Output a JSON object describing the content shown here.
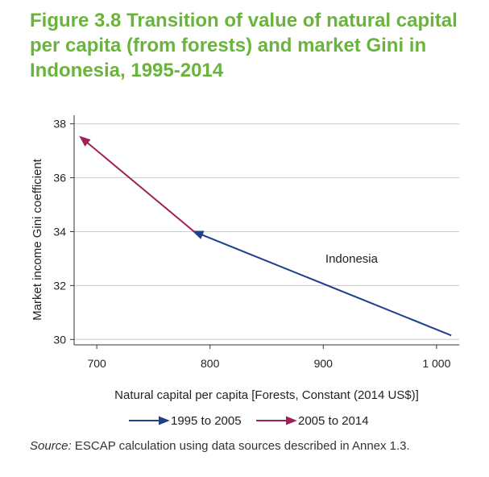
{
  "title_lines": [
    "Figure 3.8 Transition of value of natural capital",
    "per capita (from forests) and market Gini in",
    "Indonesia, 1995-2014"
  ],
  "colors": {
    "title": "#6ab43e",
    "series1": "#1f3f8f",
    "series2": "#a0205a",
    "grid": "#cccccc",
    "axis": "#333333"
  },
  "source": {
    "label": "Source:",
    "text": "ESCAP calculation using data sources described in Annex 1.3."
  },
  "chart_data": {
    "type": "line",
    "title": "",
    "xlabel": "Natural capital per capita [Forests, Constant (2014 US$)]",
    "ylabel": "Market income Gini coefficient",
    "xlim": [
      680,
      1020
    ],
    "ylim": [
      29.8,
      38.2
    ],
    "x_ticks": [
      700,
      800,
      900,
      1000
    ],
    "x_tick_labels": [
      "700",
      "800",
      "900",
      "1 000"
    ],
    "y_ticks": [
      30,
      32,
      34,
      36,
      38
    ],
    "y_tick_labels": [
      "30",
      "32",
      "34",
      "36",
      "38"
    ],
    "grid": "horizontal",
    "legend_position": "bottom",
    "series": [
      {
        "name": "1995 to 2005",
        "color": "#1f3f8f",
        "points": [
          [
            1013,
            30.15
          ],
          [
            786,
            34.0
          ]
        ]
      },
      {
        "name": "2005 to 2014",
        "color": "#a0205a",
        "points": [
          [
            786,
            34.0
          ],
          [
            686,
            37.5
          ]
        ]
      }
    ],
    "annotations": [
      {
        "text": "Indonesia",
        "x": 925,
        "y": 32.85
      }
    ]
  }
}
